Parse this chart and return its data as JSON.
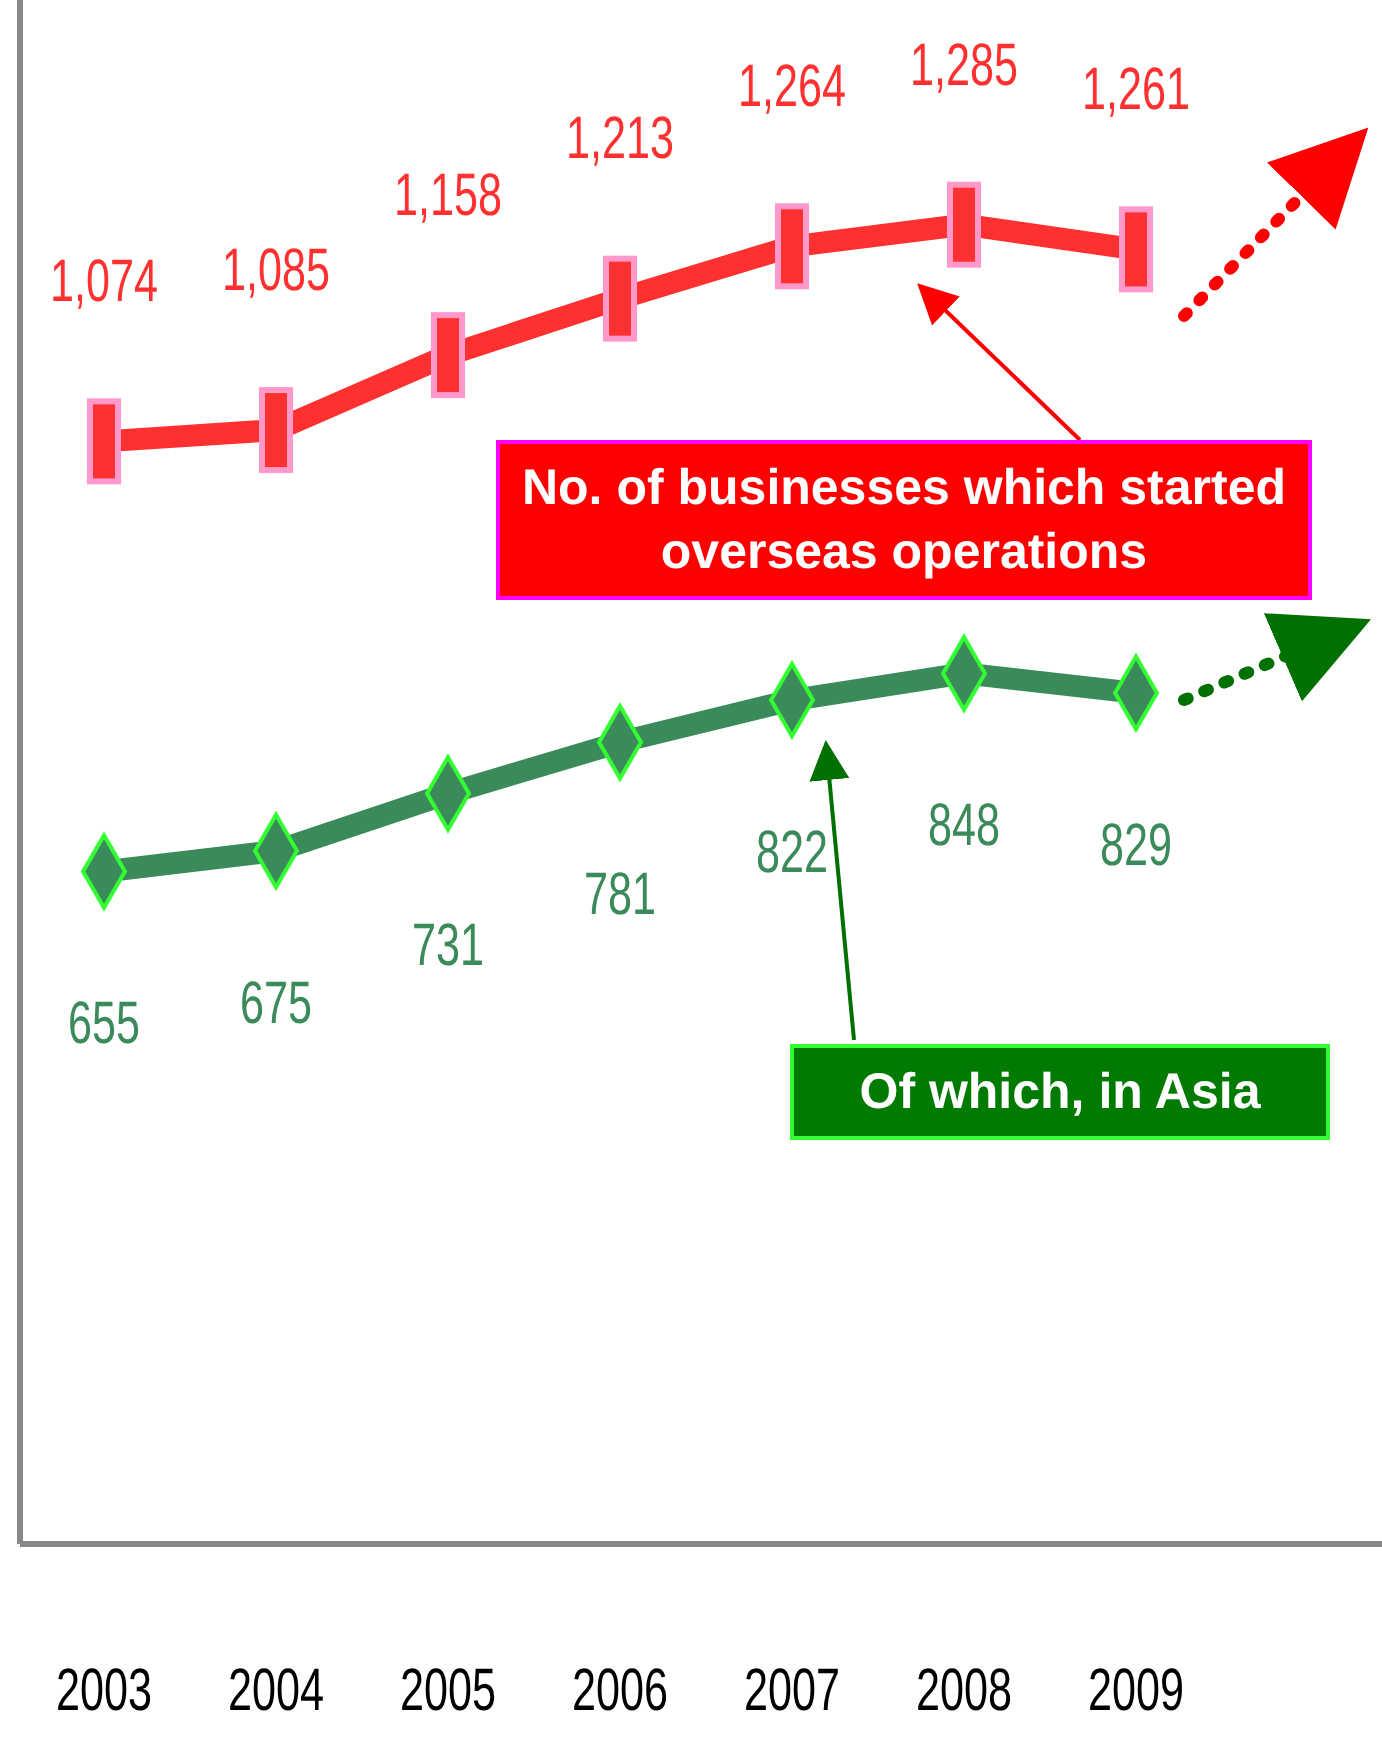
{
  "chart_data": {
    "type": "line",
    "categories": [
      "2003",
      "2004",
      "2005",
      "2006",
      "2007",
      "2008",
      "2009",
      null
    ],
    "series": [
      {
        "name": "No. of businesses which started overseas operations",
        "color": "#ff3030",
        "marker": "square",
        "values": [
          1074,
          1085,
          1158,
          1213,
          1264,
          1285,
          1261,
          null
        ],
        "value_labels": [
          "1,074",
          "1,085",
          "1,158",
          "1,213",
          "1,264",
          "1,285",
          "1,261",
          null
        ]
      },
      {
        "name": "Of which, in Asia",
        "color": "#3a8a5a",
        "marker": "diamond",
        "values": [
          655,
          675,
          731,
          781,
          822,
          848,
          829,
          null
        ],
        "value_labels": [
          "655",
          "675",
          "731",
          "781",
          "822",
          "848",
          "829",
          null
        ]
      }
    ],
    "data_labels": true,
    "legend": false,
    "grid": false,
    "line_style": "solid"
  }
}
